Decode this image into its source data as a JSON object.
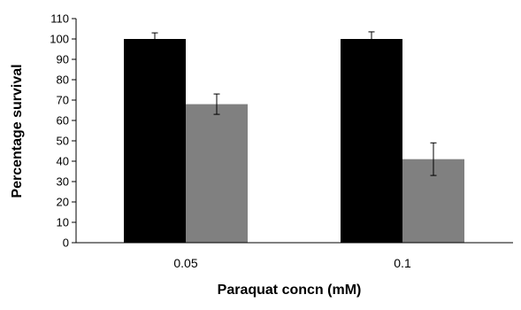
{
  "chart_data": {
    "type": "bar",
    "title": "",
    "xlabel": "Paraquat concn (mM)",
    "ylabel": "Percentage survival",
    "ylim": [
      0,
      110
    ],
    "yticks": [
      0,
      10,
      20,
      30,
      40,
      50,
      60,
      70,
      80,
      90,
      100,
      110
    ],
    "categories": [
      "0.05",
      "0.1"
    ],
    "grid": false,
    "legend": "none",
    "series": [
      {
        "values": [
          100,
          100
        ],
        "errors": [
          3,
          3.5
        ],
        "color": "#000000"
      },
      {
        "values": [
          68,
          41
        ],
        "errors": [
          5,
          8
        ],
        "color": "#808080"
      }
    ]
  }
}
